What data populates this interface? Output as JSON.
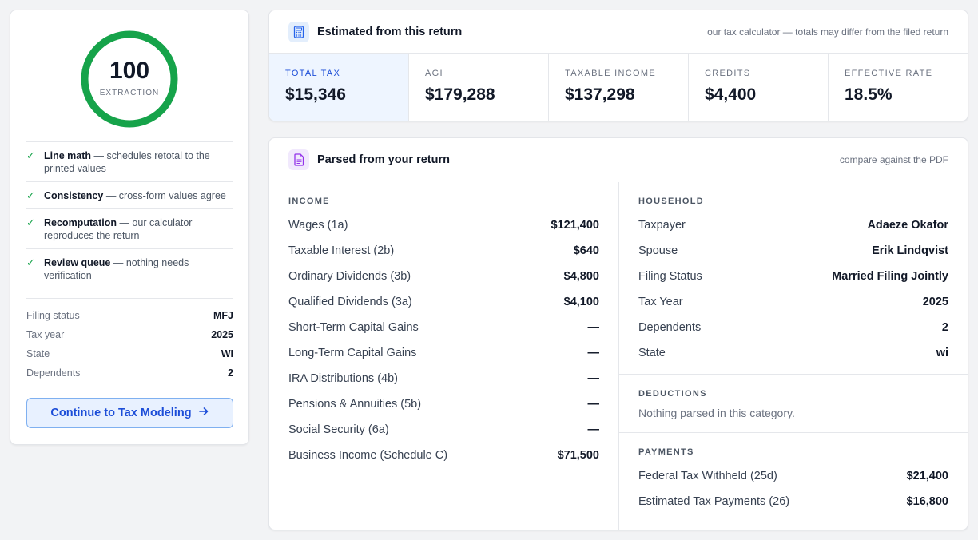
{
  "score": {
    "value": "100",
    "label": "EXTRACTION",
    "ring_color": "#16a34a"
  },
  "checks": [
    {
      "title": "Line math",
      "text": " — schedules retotal to the printed values"
    },
    {
      "title": "Consistency",
      "text": " — cross-form values agree"
    },
    {
      "title": "Recomputation",
      "text": " — our calculator reproduces the return"
    },
    {
      "title": "Review queue",
      "text": " — nothing needs verification"
    }
  ],
  "facts": [
    {
      "label": "Filing status",
      "value": "MFJ"
    },
    {
      "label": "Tax year",
      "value": "2025"
    },
    {
      "label": "State",
      "value": "WI"
    },
    {
      "label": "Dependents",
      "value": "2"
    }
  ],
  "cta": {
    "label": "Continue to Tax Modeling",
    "icon": "arrow-right-icon"
  },
  "estimated": {
    "title": "Estimated from this return",
    "note": "our tax calculator — totals may differ from the filed return",
    "icon": "calculator-icon",
    "metrics": [
      {
        "label": "TOTAL TAX",
        "value": "$15,346"
      },
      {
        "label": "AGI",
        "value": "$179,288"
      },
      {
        "label": "TAXABLE INCOME",
        "value": "$137,298"
      },
      {
        "label": "CREDITS",
        "value": "$4,400"
      },
      {
        "label": "EFFECTIVE RATE",
        "value": "18.5%"
      }
    ]
  },
  "parsed": {
    "title": "Parsed from your return",
    "note": "compare against the PDF",
    "icon": "document-icon",
    "income": {
      "title": "INCOME",
      "rows": [
        {
          "label": "Wages (1a)",
          "value": "$121,400"
        },
        {
          "label": "Taxable Interest (2b)",
          "value": "$640"
        },
        {
          "label": "Ordinary Dividends (3b)",
          "value": "$4,800"
        },
        {
          "label": "Qualified Dividends (3a)",
          "value": "$4,100"
        },
        {
          "label": "Short-Term Capital Gains",
          "value": "—"
        },
        {
          "label": "Long-Term Capital Gains",
          "value": "—"
        },
        {
          "label": "IRA Distributions (4b)",
          "value": "—"
        },
        {
          "label": "Pensions & Annuities (5b)",
          "value": "—"
        },
        {
          "label": "Social Security (6a)",
          "value": "—"
        },
        {
          "label": "Business Income (Schedule C)",
          "value": "$71,500"
        }
      ]
    },
    "household": {
      "title": "HOUSEHOLD",
      "rows": [
        {
          "label": "Taxpayer",
          "value": "Adaeze Okafor"
        },
        {
          "label": "Spouse",
          "value": "Erik Lindqvist"
        },
        {
          "label": "Filing Status",
          "value": "Married Filing Jointly"
        },
        {
          "label": "Tax Year",
          "value": "2025"
        },
        {
          "label": "Dependents",
          "value": "2"
        },
        {
          "label": "State",
          "value": "wi"
        }
      ]
    },
    "deductions": {
      "title": "DEDUCTIONS",
      "empty": "Nothing parsed in this category."
    },
    "payments": {
      "title": "PAYMENTS",
      "rows": [
        {
          "label": "Federal Tax Withheld (25d)",
          "value": "$21,400"
        },
        {
          "label": "Estimated Tax Payments (26)",
          "value": "$16,800"
        }
      ]
    }
  }
}
